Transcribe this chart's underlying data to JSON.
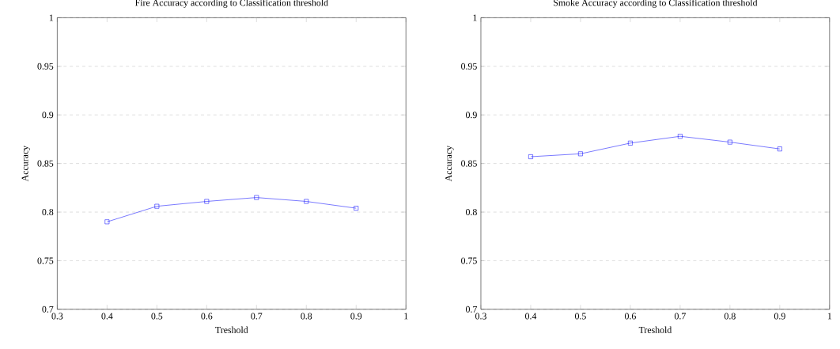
{
  "chart_data": [
    {
      "type": "line",
      "title": "Fire Accuracy according to Classification threshold",
      "xlabel": "Treshold",
      "ylabel": "Accuracy",
      "x": [
        0.4,
        0.5,
        0.6,
        0.7,
        0.8,
        0.9
      ],
      "series": [
        {
          "color": "#0000ff",
          "values": [
            0.79,
            0.806,
            0.811,
            0.815,
            0.811,
            0.804
          ]
        }
      ],
      "xlim": [
        0.3,
        1
      ],
      "ylim": [
        0.7,
        1
      ],
      "xticks": [
        0.3,
        0.4,
        0.5,
        0.6,
        0.7,
        0.8,
        0.9,
        1
      ],
      "yticks": [
        0.7,
        0.75,
        0.8,
        0.85,
        0.9,
        0.95,
        1
      ],
      "grid": "y",
      "marker": "square",
      "line_style": "solid"
    },
    {
      "type": "line",
      "title": "Smoke Accuracy according to Classification threshold",
      "xlabel": "Treshold",
      "ylabel": "Accuracy",
      "x": [
        0.4,
        0.5,
        0.6,
        0.7,
        0.8,
        0.9
      ],
      "series": [
        {
          "color": "#0000ff",
          "values": [
            0.857,
            0.86,
            0.871,
            0.878,
            0.872,
            0.865
          ]
        }
      ],
      "xlim": [
        0.3,
        1
      ],
      "ylim": [
        0.7,
        1
      ],
      "xticks": [
        0.3,
        0.4,
        0.5,
        0.6,
        0.7,
        0.8,
        0.9,
        1
      ],
      "yticks": [
        0.7,
        0.75,
        0.8,
        0.85,
        0.9,
        0.95,
        1
      ],
      "grid": "y",
      "marker": "square",
      "line_style": "solid"
    }
  ]
}
